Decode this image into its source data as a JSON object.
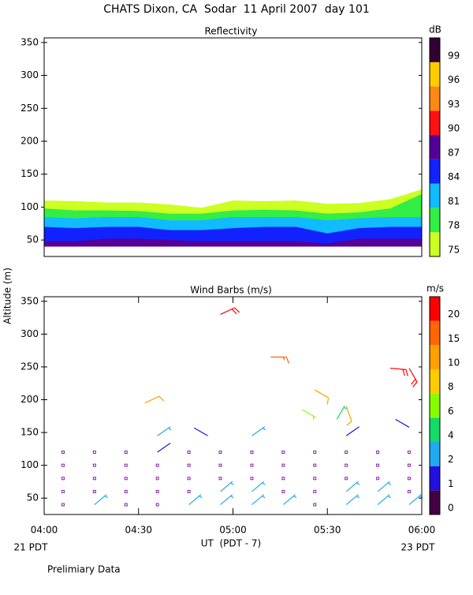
{
  "title": "CHATS Dixon, CA  Sodar  11 April 2007  day 101",
  "y_axis_label": "Altitude (m)",
  "x_axis_label": "UT  (PDT - 7)",
  "x_start_label": "21 PDT",
  "x_end_label": "23 PDT",
  "note": "Prelimiary Data",
  "chart_data": [
    {
      "type": "contour",
      "title": "Reflectivity",
      "x": [
        240,
        250,
        260,
        270,
        280,
        290,
        300,
        310,
        320,
        330,
        340,
        350,
        360
      ],
      "xlim": [
        240,
        360
      ],
      "ylim": [
        25,
        357
      ],
      "yticks": [
        50,
        100,
        150,
        200,
        250,
        300,
        350
      ],
      "base": 40,
      "series": [
        {
          "values": [
            110,
            109,
            107,
            107,
            104,
            99,
            110,
            109,
            110,
            105,
            106,
            112,
            127
          ]
        },
        {
          "values": [
            98,
            95,
            95,
            94,
            90,
            90,
            95,
            96,
            95,
            90,
            92,
            98,
            120
          ]
        },
        {
          "values": [
            85,
            83,
            85,
            85,
            80,
            80,
            85,
            85,
            85,
            80,
            83,
            85,
            85
          ]
        },
        {
          "values": [
            70,
            68,
            70,
            70,
            65,
            65,
            68,
            70,
            70,
            60,
            68,
            70,
            70
          ]
        },
        {
          "values": [
            48,
            48,
            52,
            52,
            50,
            48,
            48,
            48,
            48,
            45,
            52,
            52,
            52
          ]
        }
      ],
      "colorbar": {
        "label": "dB",
        "ticks": [
          75,
          78,
          81,
          84,
          87,
          90,
          93,
          96,
          99
        ],
        "colors": [
          "#ccff22",
          "#33ee44",
          "#11bbff",
          "#1122ff",
          "#550099",
          "#ff1111",
          "#ff8811",
          "#ffcc00",
          "#330033"
        ]
      }
    },
    {
      "type": "barbs",
      "title": "Wind Barbs (m/s)",
      "xlim": [
        240,
        360
      ],
      "xticks": [
        {
          "value": 240,
          "label": "04:00"
        },
        {
          "value": 270,
          "label": "04:30"
        },
        {
          "value": 300,
          "label": "05:00"
        },
        {
          "value": 330,
          "label": "05:30"
        },
        {
          "value": 360,
          "label": "06:00"
        }
      ],
      "ylim": [
        25,
        357
      ],
      "yticks": [
        50,
        100,
        150,
        200,
        250,
        300,
        350
      ],
      "colorbar": {
        "label": "m/s",
        "ticks": [
          0,
          1,
          2,
          4,
          6,
          8,
          10,
          15,
          20
        ],
        "colors": [
          "#440044",
          "#2211dd",
          "#22aaee",
          "#11dd66",
          "#88ff00",
          "#ffcc00",
          "#ffa000",
          "#ff6600",
          "#ff0000"
        ]
      },
      "calm_color": "#8822aa",
      "calm": {
        "x": [
          246,
          246,
          246,
          246,
          246,
          256,
          256,
          256,
          256,
          266,
          266,
          266,
          266,
          266,
          276,
          276,
          276,
          276,
          286,
          286,
          286,
          286,
          296,
          296,
          296,
          306,
          306,
          306,
          316,
          316,
          316,
          316,
          326,
          326,
          326,
          326,
          326,
          336,
          336,
          336,
          346,
          346,
          346,
          356,
          356,
          356,
          356
        ],
        "y": [
          40,
          60,
          80,
          100,
          120,
          60,
          80,
          100,
          120,
          40,
          60,
          80,
          100,
          120,
          40,
          60,
          80,
          100,
          60,
          80,
          100,
          120,
          80,
          100,
          120,
          80,
          100,
          120,
          60,
          80,
          100,
          120,
          40,
          60,
          80,
          100,
          120,
          80,
          100,
          120,
          80,
          100,
          120,
          60,
          80,
          100,
          120
        ]
      },
      "barbs": {
        "x": [
          256,
          276,
          286,
          296,
          296,
          306,
          306,
          316,
          336,
          336,
          346,
          346,
          356,
          276,
          292,
          306,
          336,
          356,
          272,
          326,
          336,
          322,
          333,
          296,
          312,
          350,
          356
        ],
        "y": [
          40,
          120,
          40,
          60,
          40,
          60,
          40,
          40,
          60,
          40,
          60,
          40,
          40,
          145,
          145,
          145,
          145,
          158,
          195,
          215,
          190,
          185,
          170,
          330,
          265,
          248,
          248
        ],
        "speed": [
          3,
          1,
          3,
          3,
          3,
          3,
          3,
          3,
          3,
          3,
          3,
          3,
          3,
          3,
          1,
          3,
          1,
          1,
          10,
          10,
          10,
          6,
          4,
          20,
          15,
          20,
          20
        ],
        "direction": [
          50,
          55,
          50,
          50,
          50,
          50,
          50,
          50,
          50,
          50,
          50,
          50,
          50,
          55,
          300,
          55,
          55,
          300,
          65,
          120,
          160,
          120,
          30,
          65,
          90,
          95,
          150
        ]
      }
    }
  ]
}
